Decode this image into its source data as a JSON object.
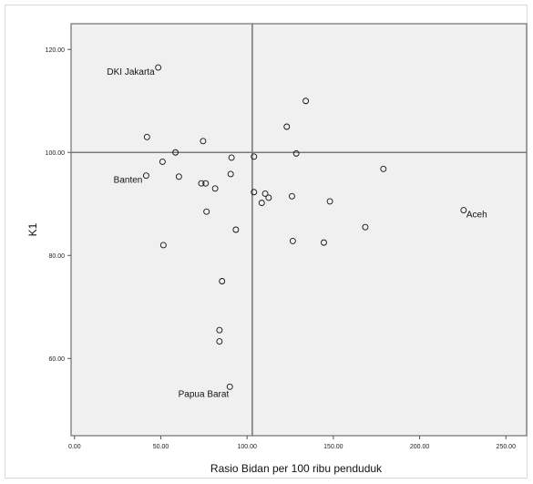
{
  "chart_data": {
    "type": "scatter",
    "title": "",
    "xlabel": "Rasio Bidan per 100 ribu penduduk",
    "ylabel": "K1",
    "xlim": [
      -2,
      262
    ],
    "ylim": [
      45,
      125
    ],
    "x_ticks": [
      {
        "value": 0,
        "label": "0.00"
      },
      {
        "value": 50,
        "label": "50.00"
      },
      {
        "value": 100,
        "label": "100.00"
      },
      {
        "value": 150,
        "label": "150.00"
      },
      {
        "value": 200,
        "label": "200.00"
      },
      {
        "value": 250,
        "label": "250.00"
      }
    ],
    "y_ticks": [
      {
        "value": 60,
        "label": "60.00"
      },
      {
        "value": 80,
        "label": "80.00"
      },
      {
        "value": 100,
        "label": "100.00"
      },
      {
        "value": 120,
        "label": "120.00"
      }
    ],
    "reference_lines": {
      "x": 103,
      "y": 100
    },
    "colors": {
      "plot_bg": "#f0f0f0",
      "ref_line": "#7a7a7a",
      "marker_stroke": "#111111"
    },
    "grid": false,
    "points": [
      {
        "x": 48.5,
        "y": 116.5,
        "label": "DKI Jakarta"
      },
      {
        "x": 42,
        "y": 103
      },
      {
        "x": 51,
        "y": 98.2
      },
      {
        "x": 41.5,
        "y": 95.5,
        "label": "Banten"
      },
      {
        "x": 58.5,
        "y": 100
      },
      {
        "x": 60.5,
        "y": 95.3
      },
      {
        "x": 74.5,
        "y": 102.2
      },
      {
        "x": 73.5,
        "y": 94
      },
      {
        "x": 76,
        "y": 94
      },
      {
        "x": 81.5,
        "y": 93
      },
      {
        "x": 76.5,
        "y": 88.5
      },
      {
        "x": 91,
        "y": 99
      },
      {
        "x": 90.5,
        "y": 95.8
      },
      {
        "x": 93.5,
        "y": 85
      },
      {
        "x": 51.5,
        "y": 82
      },
      {
        "x": 85.5,
        "y": 75
      },
      {
        "x": 84,
        "y": 65.5
      },
      {
        "x": 84,
        "y": 63.3
      },
      {
        "x": 90,
        "y": 54.5,
        "label": "Papua Barat"
      },
      {
        "x": 104,
        "y": 99.2
      },
      {
        "x": 104,
        "y": 92.3
      },
      {
        "x": 110.5,
        "y": 92
      },
      {
        "x": 112.5,
        "y": 91.2
      },
      {
        "x": 108.5,
        "y": 90.2
      },
      {
        "x": 123,
        "y": 105
      },
      {
        "x": 128.5,
        "y": 99.8
      },
      {
        "x": 134,
        "y": 110
      },
      {
        "x": 126,
        "y": 91.5
      },
      {
        "x": 126.5,
        "y": 82.8
      },
      {
        "x": 144.5,
        "y": 82.5
      },
      {
        "x": 148,
        "y": 90.5
      },
      {
        "x": 168.5,
        "y": 85.5
      },
      {
        "x": 179,
        "y": 96.8
      },
      {
        "x": 225.5,
        "y": 88.8,
        "label": "Aceh"
      }
    ]
  }
}
